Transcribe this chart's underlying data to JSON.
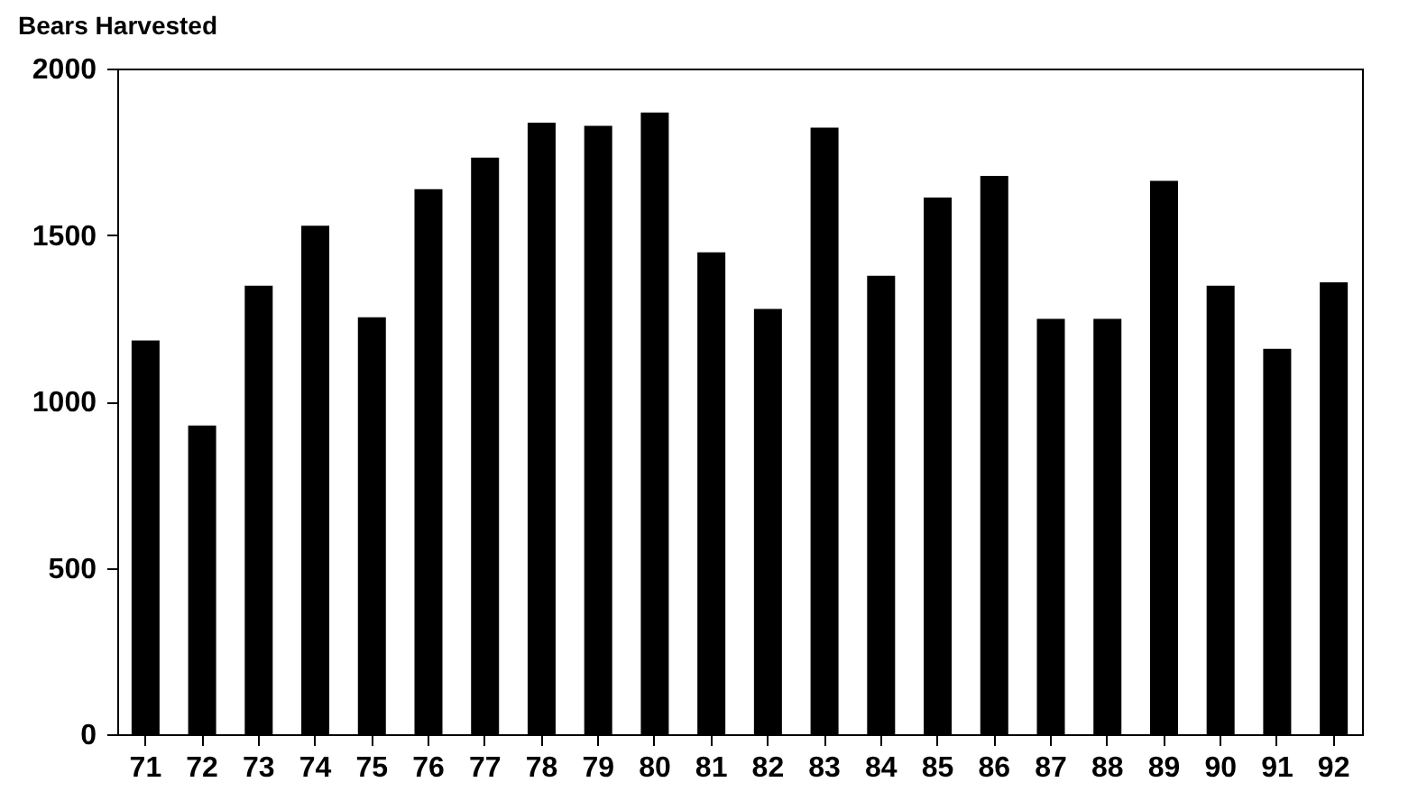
{
  "chart_data": {
    "type": "bar",
    "title": "Bears Harvested",
    "categories": [
      "71",
      "72",
      "73",
      "74",
      "75",
      "76",
      "77",
      "78",
      "79",
      "80",
      "81",
      "82",
      "83",
      "84",
      "85",
      "86",
      "87",
      "88",
      "89",
      "90",
      "91",
      "92"
    ],
    "values": [
      1180,
      925,
      1345,
      1525,
      1250,
      1635,
      1730,
      1835,
      1825,
      1865,
      1445,
      1275,
      1820,
      1375,
      1610,
      1675,
      1245,
      1245,
      1660,
      1345,
      1155,
      1355
    ],
    "color": "#000000",
    "ylim": [
      0,
      2000
    ],
    "yticks": [
      0,
      500,
      1000,
      1500,
      2000
    ],
    "grid": false
  }
}
